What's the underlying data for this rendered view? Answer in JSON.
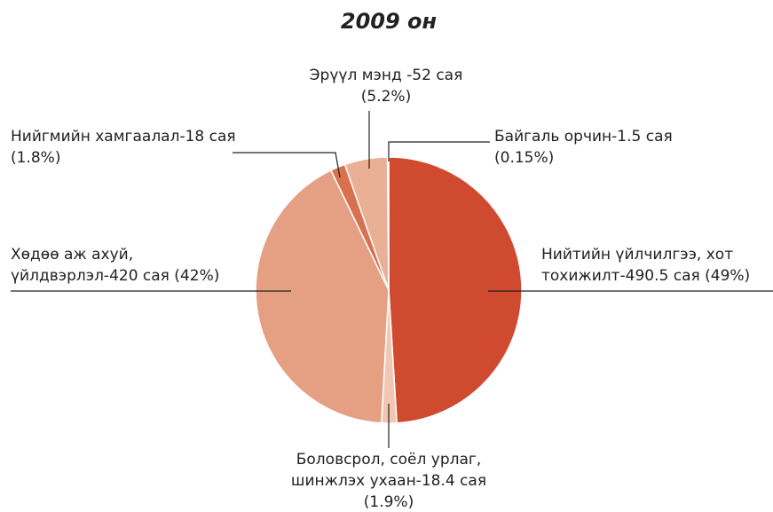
{
  "chart_data": {
    "type": "pie",
    "title": "2009 он",
    "values": [
      490.5,
      18.4,
      420,
      18,
      52,
      1.5
    ],
    "value_labels": [
      [
        "Нийтийн үйлчилгээ, хот",
        "тохижилт-490.5 сая (49%)"
      ],
      [
        "Боловсрол, соёл урлаг,",
        "шинжлэх ухаан-18.4 сая",
        "(1.9%)"
      ],
      [
        "Хөдөө аж ахуй,",
        "үйлдвэрлэл-420 сая (42%)"
      ],
      [
        "Нийгмийн хамгаалал-18 сая",
        "(1.8%)"
      ],
      [
        "Эрүүл мэнд -52 сая",
        "(5.2%)"
      ],
      [
        "Байгаль орчин-1.5 сая",
        "(0.15%)"
      ]
    ],
    "colors": [
      "#d04a30",
      "#f2c6b4",
      "#e5a084",
      "#d8714f",
      "#e9b096",
      "#d04a30"
    ]
  }
}
